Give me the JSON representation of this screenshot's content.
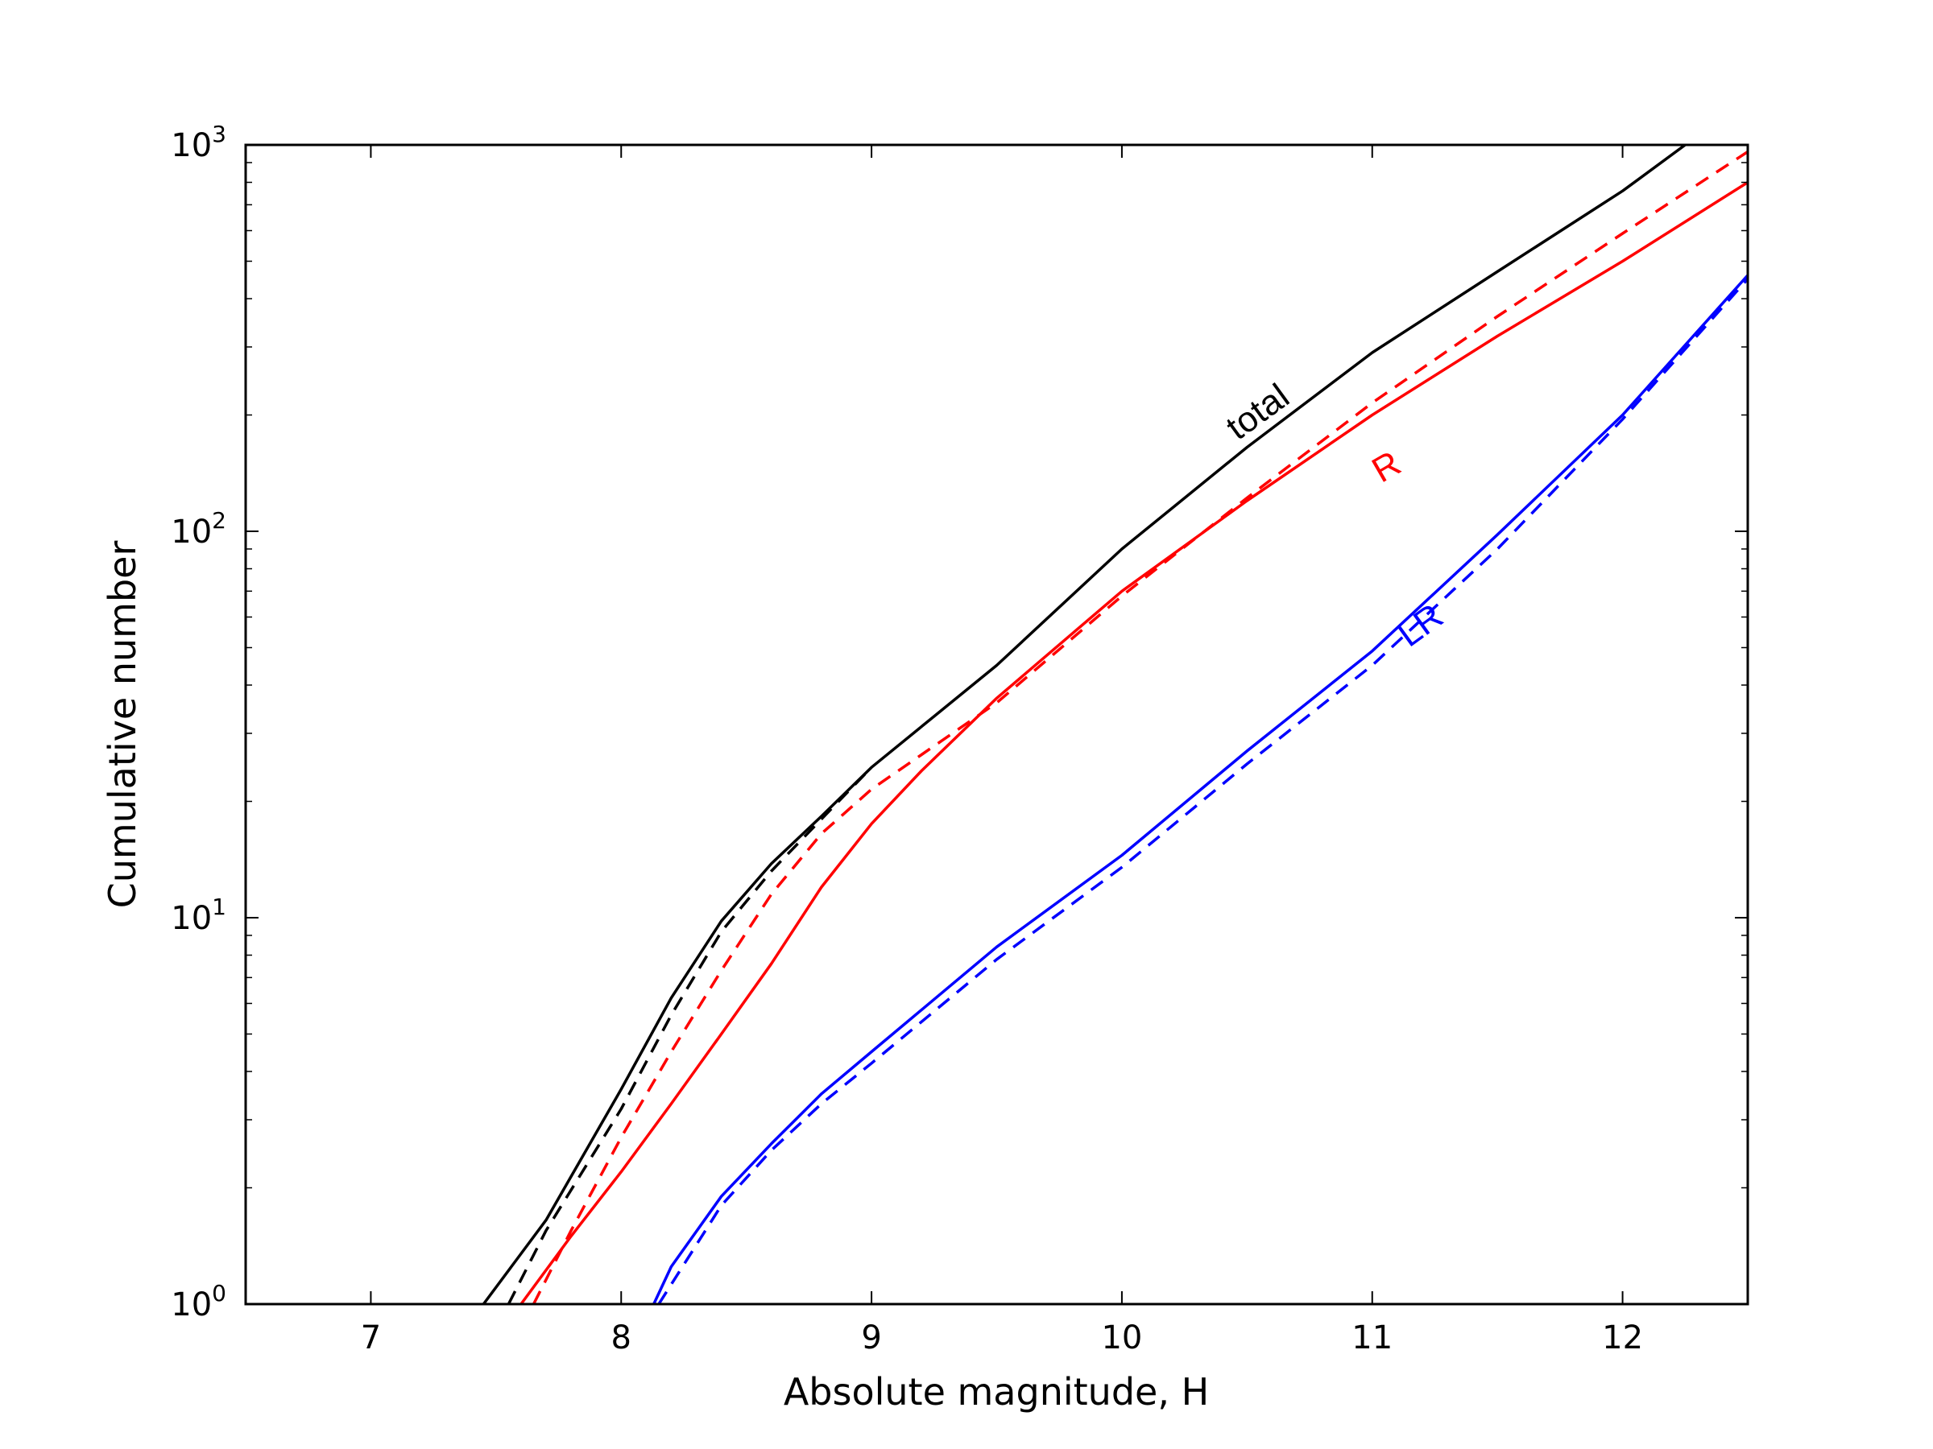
{
  "chart_data": {
    "type": "line",
    "title": "",
    "xlabel": "Absolute magnitude, H",
    "ylabel": "Cumulative number",
    "xlim": [
      6.5,
      12.5
    ],
    "ylim": [
      1,
      1000
    ],
    "yscale": "log",
    "grid": false,
    "x_ticks": [
      7,
      8,
      9,
      10,
      11,
      12
    ],
    "y_ticks": [
      {
        "base": "10",
        "exp": "0"
      },
      {
        "base": "10",
        "exp": "1"
      },
      {
        "base": "10",
        "exp": "2"
      },
      {
        "base": "10",
        "exp": "3"
      }
    ],
    "series": [
      {
        "label": "total",
        "color": "#000000",
        "style": "solid",
        "points": [
          [
            7.45,
            1.0
          ],
          [
            7.7,
            1.65
          ],
          [
            8.0,
            3.6
          ],
          [
            8.2,
            6.2
          ],
          [
            8.4,
            9.8
          ],
          [
            8.6,
            13.8
          ],
          [
            8.8,
            18.3
          ],
          [
            9.0,
            24.5
          ],
          [
            9.5,
            45
          ],
          [
            10.0,
            90
          ],
          [
            10.5,
            165
          ],
          [
            11.0,
            290
          ],
          [
            11.5,
            470
          ],
          [
            12.0,
            760
          ],
          [
            12.25,
            1000
          ]
        ]
      },
      {
        "label": "",
        "color": "#000000",
        "style": "dashed",
        "points": [
          [
            7.55,
            1.0
          ],
          [
            7.7,
            1.55
          ],
          [
            8.0,
            3.2
          ],
          [
            8.2,
            5.6
          ],
          [
            8.4,
            9.2
          ],
          [
            8.6,
            13.2
          ],
          [
            8.8,
            18.0
          ],
          [
            9.0,
            24.5
          ]
        ]
      },
      {
        "label": "R",
        "color": "#ff0000",
        "style": "solid",
        "points": [
          [
            7.6,
            1.0
          ],
          [
            7.8,
            1.5
          ],
          [
            8.0,
            2.2
          ],
          [
            8.2,
            3.3
          ],
          [
            8.4,
            5.0
          ],
          [
            8.6,
            7.6
          ],
          [
            8.8,
            12.0
          ],
          [
            9.0,
            17.5
          ],
          [
            9.2,
            24
          ],
          [
            9.5,
            37
          ],
          [
            10.0,
            70
          ],
          [
            10.5,
            120
          ],
          [
            11.0,
            200
          ],
          [
            11.5,
            320
          ],
          [
            12.0,
            500
          ],
          [
            12.5,
            800
          ]
        ]
      },
      {
        "label": "",
        "color": "#ff0000",
        "style": "dashed",
        "points": [
          [
            7.65,
            1.0
          ],
          [
            7.8,
            1.55
          ],
          [
            8.0,
            2.7
          ],
          [
            8.2,
            4.5
          ],
          [
            8.4,
            7.3
          ],
          [
            8.6,
            11.5
          ],
          [
            8.8,
            16.5
          ],
          [
            9.0,
            21.5
          ],
          [
            9.5,
            36
          ],
          [
            10.0,
            68
          ],
          [
            10.5,
            122
          ],
          [
            11.0,
            215
          ],
          [
            11.5,
            360
          ],
          [
            12.0,
            590
          ],
          [
            12.5,
            960
          ]
        ]
      },
      {
        "label": "LR",
        "color": "#0000ff",
        "style": "solid",
        "points": [
          [
            8.13,
            1.0
          ],
          [
            8.2,
            1.25
          ],
          [
            8.4,
            1.9
          ],
          [
            8.6,
            2.6
          ],
          [
            8.8,
            3.5
          ],
          [
            9.0,
            4.5
          ],
          [
            9.5,
            8.4
          ],
          [
            10.0,
            14.5
          ],
          [
            10.5,
            27
          ],
          [
            11.0,
            49
          ],
          [
            11.5,
            98
          ],
          [
            12.0,
            200
          ],
          [
            12.5,
            460
          ]
        ]
      },
      {
        "label": "",
        "color": "#0000ff",
        "style": "dashed",
        "points": [
          [
            8.15,
            1.0
          ],
          [
            8.4,
            1.8
          ],
          [
            8.6,
            2.5
          ],
          [
            8.8,
            3.3
          ],
          [
            9.0,
            4.2
          ],
          [
            9.5,
            7.8
          ],
          [
            10.0,
            13.5
          ],
          [
            10.5,
            25
          ],
          [
            11.0,
            45
          ],
          [
            11.5,
            90
          ],
          [
            12.0,
            195
          ],
          [
            12.5,
            450
          ]
        ]
      }
    ]
  }
}
